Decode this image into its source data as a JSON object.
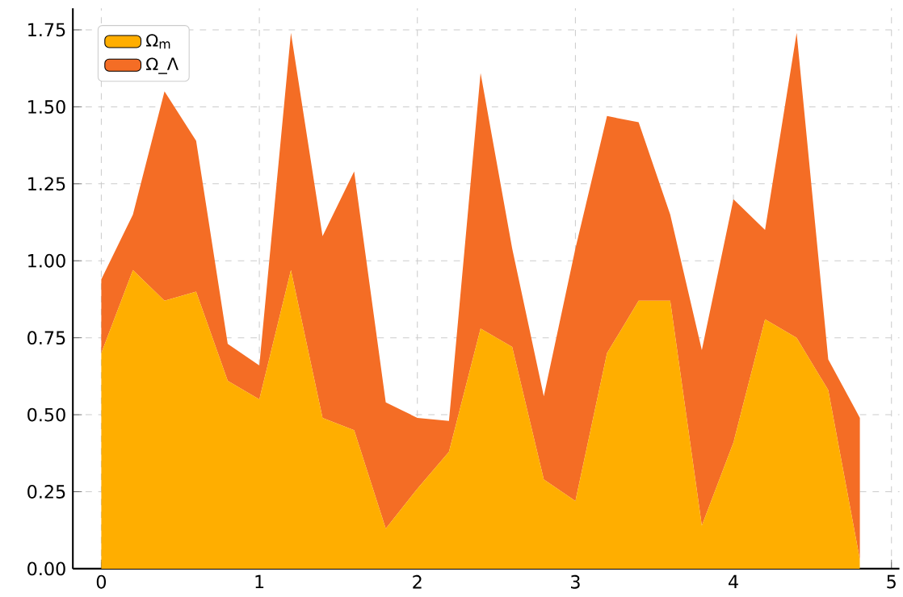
{
  "chart_data": {
    "type": "area",
    "stacked": true,
    "x": [
      0,
      0.2,
      0.4,
      0.6,
      0.8,
      1.0,
      1.2,
      1.4,
      1.6,
      1.8,
      2.0,
      2.2,
      2.4,
      2.6,
      2.8,
      3.0,
      3.2,
      3.4,
      3.6,
      3.8,
      4.0,
      4.2,
      4.4,
      4.6,
      4.8
    ],
    "series": [
      {
        "name": "Ω$_{m}$",
        "color": "#ffae00",
        "values": [
          0.7,
          0.97,
          0.87,
          0.9,
          0.61,
          0.55,
          0.97,
          0.49,
          0.45,
          0.13,
          0.26,
          0.38,
          0.78,
          0.72,
          0.29,
          0.22,
          0.7,
          0.87,
          0.87,
          0.14,
          0.41,
          0.81,
          0.75,
          0.58,
          0.03
        ]
      },
      {
        "name": "Ω_Λ",
        "color": "#f46d25",
        "values": [
          0.24,
          0.18,
          0.68,
          0.49,
          0.12,
          0.11,
          0.77,
          0.59,
          0.84,
          0.41,
          0.23,
          0.1,
          0.83,
          0.32,
          0.27,
          0.82,
          0.77,
          0.58,
          0.28,
          0.57,
          0.79,
          0.29,
          0.99,
          0.1,
          0.46
        ]
      }
    ],
    "xlim": [
      -0.18,
      5.05
    ],
    "ylim": [
      0,
      1.82
    ],
    "xticks": [
      0,
      1,
      2,
      3,
      4,
      5
    ],
    "yticks": [
      {
        "value": 0,
        "label": "0.00"
      },
      {
        "value": 0.25,
        "label": "0.25"
      },
      {
        "value": 0.5,
        "label": "0.50"
      },
      {
        "value": 0.75,
        "label": "0.75"
      },
      {
        "value": 1.0,
        "label": "1.00"
      },
      {
        "value": 1.25,
        "label": "1.25"
      },
      {
        "value": 1.5,
        "label": "1.50"
      },
      {
        "value": 1.75,
        "label": "1.75"
      }
    ],
    "grid": true,
    "legend": "top left"
  }
}
